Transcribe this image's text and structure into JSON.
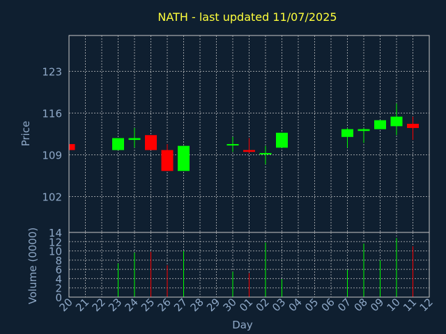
{
  "chart_data": {
    "type": "candlestick",
    "title": "NATH - last updated 11/07/2025",
    "xlabel": "Day",
    "price_panel": {
      "ylabel": "Price",
      "ylim": [
        96,
        129
      ],
      "yticks": [
        102,
        109,
        116,
        123
      ]
    },
    "volume_panel": {
      "ylabel": "Volume (0000)",
      "ylim": [
        0,
        14
      ],
      "yticks": [
        0,
        2,
        4,
        6,
        8,
        10,
        12,
        14
      ]
    },
    "grid": true,
    "categories": [
      "20",
      "21",
      "22",
      "23",
      "24",
      "25",
      "26",
      "27",
      "28",
      "29",
      "30",
      "01",
      "02",
      "03",
      "04",
      "05",
      "06",
      "07",
      "08",
      "09",
      "10",
      "11",
      "12"
    ],
    "candles": [
      {
        "x": "20",
        "open": 110.8,
        "high": 110.8,
        "low": 109.8,
        "close": 109.8,
        "volume": 0
      },
      {
        "x": "23",
        "open": 109.8,
        "high": 111.8,
        "low": 109.8,
        "close": 111.8,
        "volume": 7.3
      },
      {
        "x": "24",
        "open": 111.5,
        "high": 113.5,
        "low": 110.2,
        "close": 111.8,
        "volume": 9.6
      },
      {
        "x": "25",
        "open": 112.3,
        "high": 112.3,
        "low": 109.8,
        "close": 109.8,
        "volume": 9.8
      },
      {
        "x": "26",
        "open": 109.8,
        "high": 110.8,
        "low": 106.3,
        "close": 106.3,
        "volume": 6.9
      },
      {
        "x": "27",
        "open": 106.3,
        "high": 110.5,
        "low": 106.3,
        "close": 110.5,
        "volume": 10.0
      },
      {
        "x": "30",
        "open": 110.8,
        "high": 112.0,
        "low": 109.5,
        "close": 110.8,
        "volume": 5.5
      },
      {
        "x": "01",
        "open": 109.8,
        "high": 111.8,
        "low": 109.3,
        "close": 109.5,
        "volume": 5.2
      },
      {
        "x": "02",
        "open": 109.3,
        "high": 110.5,
        "low": 107.4,
        "close": 109.3,
        "volume": 11.8
      },
      {
        "x": "03",
        "open": 110.2,
        "high": 112.7,
        "low": 110.2,
        "close": 112.7,
        "volume": 3.9
      },
      {
        "x": "07",
        "open": 112.0,
        "high": 113.5,
        "low": 110.2,
        "close": 113.3,
        "volume": 5.9
      },
      {
        "x": "08",
        "open": 113.0,
        "high": 113.5,
        "low": 111.0,
        "close": 113.3,
        "volume": 11.6
      },
      {
        "x": "09",
        "open": 113.3,
        "high": 114.8,
        "low": 113.3,
        "close": 114.8,
        "volume": 8.0
      },
      {
        "x": "10",
        "open": 113.8,
        "high": 117.6,
        "low": 112.3,
        "close": 115.4,
        "volume": 12.8
      },
      {
        "x": "11",
        "open": 114.2,
        "high": 115.4,
        "low": 111.5,
        "close": 113.5,
        "volume": 11.0
      }
    ],
    "colors": {
      "up": "#00ff00",
      "down": "#ff0000",
      "grid": "#c8c8c8",
      "background": "#0f1f30",
      "title": "#ffff3c",
      "text": "#8fa9c8"
    }
  }
}
